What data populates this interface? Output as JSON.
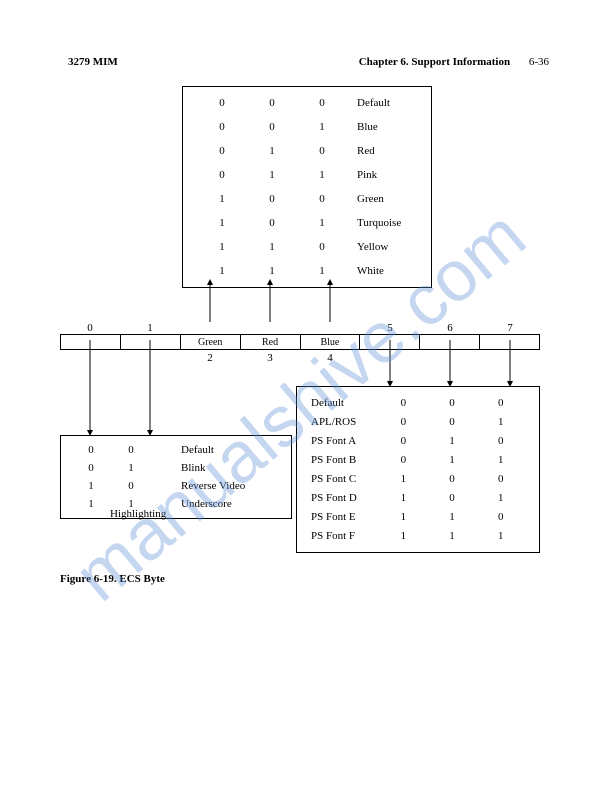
{
  "header": {
    "left": "3279 MIM",
    "chapter": "Chapter 6. Support Information",
    "page": "6-36"
  },
  "colorTable": {
    "rows": [
      {
        "b0": "0",
        "b1": "0",
        "b2": "0",
        "label": "Default"
      },
      {
        "b0": "0",
        "b1": "0",
        "b2": "1",
        "label": "Blue"
      },
      {
        "b0": "0",
        "b1": "1",
        "b2": "0",
        "label": "Red"
      },
      {
        "b0": "0",
        "b1": "1",
        "b2": "1",
        "label": "Pink"
      },
      {
        "b0": "1",
        "b1": "0",
        "b2": "0",
        "label": "Green"
      },
      {
        "b0": "1",
        "b1": "0",
        "b2": "1",
        "label": "Turquoise"
      },
      {
        "b0": "1",
        "b1": "1",
        "b2": "0",
        "label": "Yellow"
      },
      {
        "b0": "1",
        "b1": "1",
        "b2": "1",
        "label": "White"
      }
    ]
  },
  "byteBar": {
    "topLabels": [
      "0",
      "1",
      "",
      "",
      "",
      "5",
      "6",
      "7"
    ],
    "cellLabels": [
      "",
      "",
      "Green",
      "Red",
      "Blue",
      "",
      "",
      ""
    ],
    "botLabels": [
      "",
      "",
      "2",
      "3",
      "4",
      "",
      "",
      ""
    ]
  },
  "highlightTable": {
    "rows": [
      {
        "b0": "0",
        "b1": "0",
        "label": "Default"
      },
      {
        "b0": "0",
        "b1": "1",
        "label": "Blink"
      },
      {
        "b0": "1",
        "b1": "0",
        "label": "Reverse Video"
      },
      {
        "b0": "1",
        "b1": "1",
        "label": "Underscore"
      }
    ],
    "caption": "Highlighting"
  },
  "fontTable": {
    "rows": [
      {
        "label": "Default",
        "b0": "0",
        "b1": "0",
        "b2": "0"
      },
      {
        "label": "APL/ROS",
        "b0": "0",
        "b1": "0",
        "b2": "1"
      },
      {
        "label": "PS Font A",
        "b0": "0",
        "b1": "1",
        "b2": "0"
      },
      {
        "label": "PS Font B",
        "b0": "0",
        "b1": "1",
        "b2": "1"
      },
      {
        "label": "PS Font C",
        "b0": "1",
        "b1": "0",
        "b2": "0"
      },
      {
        "label": "PS Font D",
        "b0": "1",
        "b1": "0",
        "b2": "1"
      },
      {
        "label": "PS Font E",
        "b0": "1",
        "b1": "1",
        "b2": "0"
      },
      {
        "label": "PS Font F",
        "b0": "1",
        "b1": "1",
        "b2": "1"
      }
    ]
  },
  "figureCaption": "Figure 6-19.  ECS Byte",
  "watermark": "manualshive.com"
}
